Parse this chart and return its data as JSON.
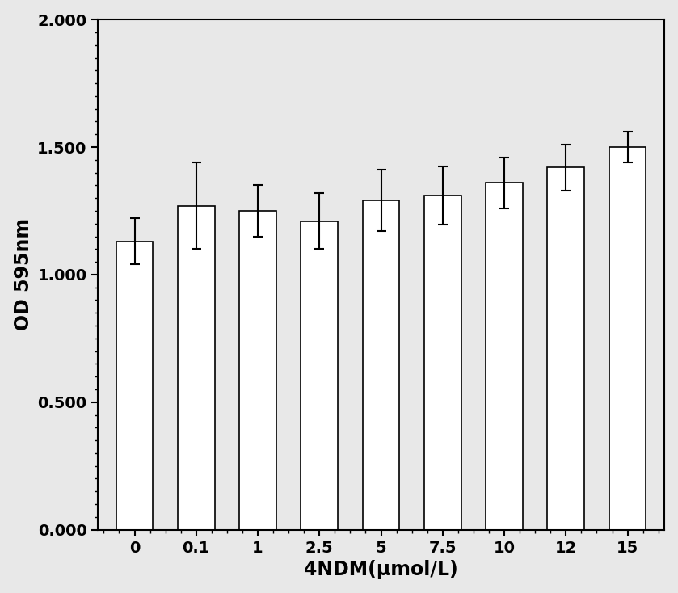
{
  "categories": [
    "0",
    "0.1",
    "1",
    "2.5",
    "5",
    "7.5",
    "10",
    "12",
    "15"
  ],
  "values": [
    1.13,
    1.27,
    1.25,
    1.21,
    1.29,
    1.31,
    1.36,
    1.42,
    1.5
  ],
  "errors": [
    0.09,
    0.17,
    0.1,
    0.11,
    0.12,
    0.115,
    0.1,
    0.09,
    0.06
  ],
  "bar_color": "#ffffff",
  "bar_edgecolor": "#000000",
  "errorbar_color": "#000000",
  "ylabel": "OD 595nm",
  "xlabel": "4NDM(μmol/L)",
  "ylim": [
    0.0,
    2.0
  ],
  "yticks": [
    0.0,
    0.5,
    1.0,
    1.5,
    2.0
  ],
  "ytick_labels": [
    "0.000",
    "0.500",
    "1.000",
    "1.500",
    "2.000"
  ],
  "bar_width": 0.6,
  "bar_linewidth": 1.2,
  "errorbar_capsize": 4,
  "errorbar_linewidth": 1.5,
  "ylabel_fontsize": 17,
  "xlabel_fontsize": 17,
  "tick_fontsize": 14,
  "background_color": "#e8e8e8",
  "axes_facecolor": "#e8e8e8",
  "axes_linewidth": 1.5,
  "font_weight": "bold"
}
